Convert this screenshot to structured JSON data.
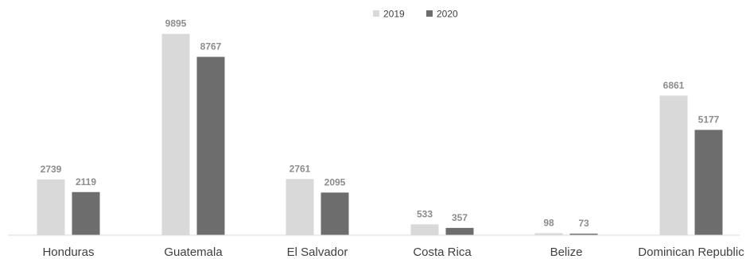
{
  "chart_data": {
    "type": "bar",
    "title": "",
    "xlabel": "",
    "ylabel": "",
    "categories": [
      "Honduras",
      "Guatemala",
      "El Salvador",
      "Costa Rica",
      "Belize",
      "Dominican Republic"
    ],
    "series": [
      {
        "name": "2019",
        "values": [
          2739,
          9895,
          2761,
          533,
          98,
          6861
        ],
        "color": "#d9d9d9"
      },
      {
        "name": "2020",
        "values": [
          2119,
          8767,
          2095,
          357,
          73,
          5177
        ],
        "color": "#6d6d6d"
      }
    ],
    "ylim": [
      0,
      10000
    ],
    "grid": false,
    "legend": "top-center",
    "data_labels": true
  }
}
